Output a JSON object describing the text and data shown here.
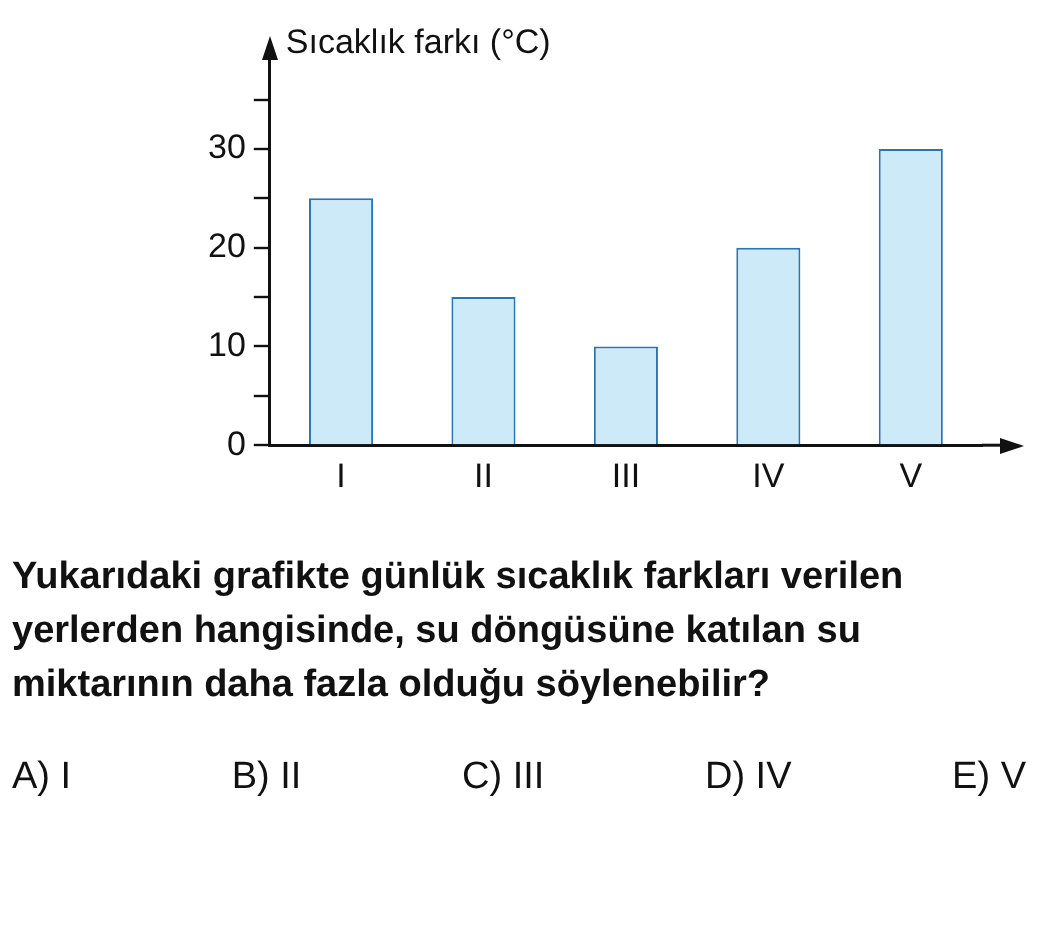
{
  "chart_data": {
    "type": "bar",
    "ylabel": "Sıcaklık farkı (°C)",
    "categories": [
      "I",
      "II",
      "III",
      "IV",
      "V"
    ],
    "values": [
      25,
      15,
      10,
      20,
      30
    ],
    "color": "#cdeaf8",
    "ylim": [
      0,
      39
    ],
    "yticks": [
      0,
      {
        "value": 5,
        "label": null
      },
      10,
      {
        "value": 15,
        "label": null
      },
      20,
      {
        "value": 25,
        "label": null
      },
      30,
      {
        "value": 35,
        "label": null
      }
    ],
    "grid": false,
    "legend": false,
    "annotations": [
      "Yukarıdaki grafikte günlük sıcaklık farkları verilen yerlerden hangisinde, su döngüsüne katılan su miktarının daha fazla olduğu söylenebilir?",
      "A) I",
      "B) II",
      "C) III",
      "D) IV",
      "E) V"
    ]
  }
}
